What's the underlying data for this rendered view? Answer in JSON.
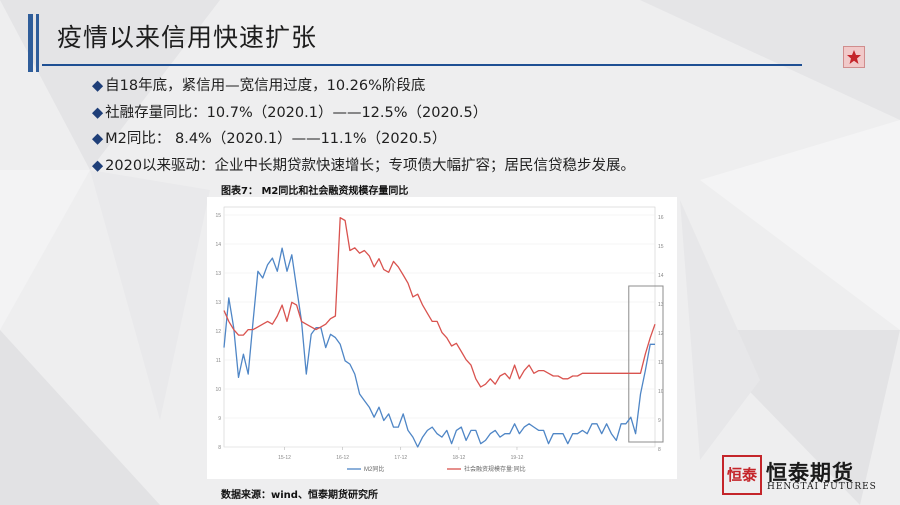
{
  "slide": {
    "title": "疫情以来信用快速扩张",
    "bullets": [
      "自18年底，紧信用—宽信用过度，10.26%阶段底",
      "社融存量同比：10.7%（2020.1）——12.5%（2020.5）",
      "M2同比：  8.4%（2020.1）——11.1%（2020.5）",
      "2020以来驱动：企业中长期贷款快速增长；专项债大幅扩容；居民信贷稳步发展。"
    ],
    "bullet_mark": "◆",
    "figure_title": "图表7： M2同比和社会融资规模存量同比",
    "source": "数据来源：wind、恒泰期货研究所",
    "logo": {
      "seal": "恒泰",
      "name_cn": "恒泰期货",
      "name_en": "HENGTAI FUTURES"
    },
    "star_icon": "star-icon",
    "colors": {
      "accent": "#1e4f93",
      "m2": "#4f86c6",
      "tsf": "#d9534f",
      "star": "#c4252a"
    }
  },
  "chart_data": {
    "type": "line",
    "x_tick_labels": [
      "15-12",
      "16-12",
      "17-12",
      "18-12",
      "19-12"
    ],
    "y_left": {
      "ticks": [
        "8",
        "9",
        "10",
        "11",
        "12",
        "13",
        "13",
        "14",
        "15"
      ],
      "range": [
        8,
        15
      ]
    },
    "y_right": {
      "ticks": [
        "8",
        "9",
        "10",
        "11",
        "12",
        "13",
        "14",
        "15",
        "16"
      ],
      "range": [
        8,
        16.5
      ]
    },
    "series": [
      {
        "name": "M2同比",
        "axis": "left",
        "start": "2015-01",
        "values": [
          11.0,
          12.5,
          11.6,
          10.1,
          10.8,
          10.2,
          11.8,
          13.3,
          13.1,
          13.5,
          13.7,
          13.3,
          14.0,
          13.3,
          13.8,
          12.8,
          11.8,
          10.2,
          11.4,
          11.6,
          11.6,
          11.0,
          11.4,
          11.3,
          11.1,
          10.6,
          10.5,
          10.2,
          9.6,
          9.4,
          9.2,
          8.9,
          9.2,
          8.8,
          9.0,
          8.6,
          8.6,
          9.0,
          8.5,
          8.3,
          8.0,
          8.3,
          8.5,
          8.6,
          8.4,
          8.3,
          8.5,
          8.1,
          8.5,
          8.6,
          8.2,
          8.5,
          8.5,
          8.1,
          8.2,
          8.4,
          8.5,
          8.3,
          8.4,
          8.4,
          8.7,
          8.4,
          8.6,
          8.7,
          8.6,
          8.5,
          8.5,
          8.1,
          8.4,
          8.4,
          8.4,
          8.1,
          8.4,
          8.4,
          8.5,
          8.4,
          8.7,
          8.7,
          8.4,
          8.7,
          8.4,
          8.2,
          8.7,
          8.7,
          8.9,
          8.4,
          9.6,
          10.3,
          11.1,
          11.1
        ]
      },
      {
        "name": "社会融资规模存量:同比",
        "axis": "right",
        "start": "2015-01",
        "values": [
          13.0,
          12.6,
          12.3,
          12.1,
          12.1,
          12.3,
          12.3,
          12.4,
          12.5,
          12.6,
          12.5,
          12.8,
          13.2,
          12.6,
          13.3,
          13.2,
          12.6,
          12.5,
          12.4,
          12.3,
          12.4,
          12.5,
          12.7,
          12.8,
          16.4,
          16.3,
          15.2,
          15.3,
          15.1,
          15.2,
          15.0,
          14.6,
          14.9,
          14.5,
          14.4,
          14.8,
          14.6,
          14.3,
          14.0,
          13.5,
          13.6,
          13.2,
          12.9,
          12.6,
          12.6,
          12.2,
          12.0,
          11.7,
          11.8,
          11.5,
          11.2,
          11.0,
          10.5,
          10.2,
          10.3,
          10.5,
          10.3,
          10.6,
          10.7,
          10.5,
          11.0,
          10.5,
          10.8,
          11.0,
          10.7,
          10.8,
          10.8,
          10.7,
          10.6,
          10.6,
          10.5,
          10.5,
          10.6,
          10.6,
          10.7,
          10.7,
          10.7,
          10.7,
          10.7,
          10.7,
          10.7,
          10.7,
          10.7,
          10.7,
          10.7,
          10.7,
          10.7,
          11.4,
          12.0,
          12.5
        ]
      }
    ],
    "legend": "bottom",
    "highlight": "last 5 months boxed",
    "grid": true
  }
}
